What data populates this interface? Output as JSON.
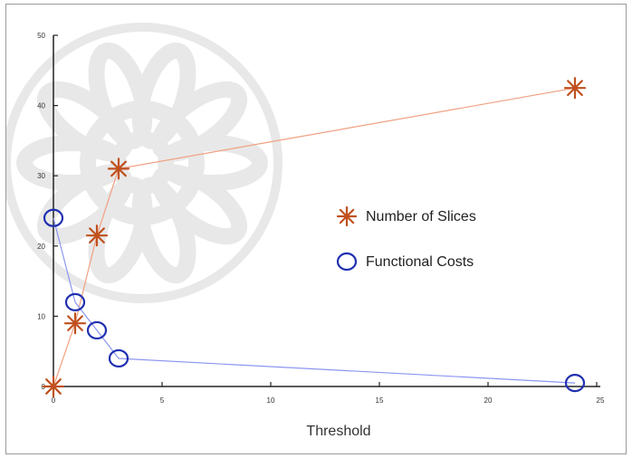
{
  "chart_data": {
    "type": "line",
    "xlabel": "Threshold",
    "ylabel": "",
    "xlim": [
      0,
      25
    ],
    "ylim": [
      0,
      50
    ],
    "xticks": [
      0,
      5,
      10,
      15,
      20,
      25
    ],
    "yticks": [
      0,
      10,
      20,
      30,
      40,
      50
    ],
    "legend_position": "center-right",
    "series": [
      {
        "name": "Number of Slices",
        "marker": "asterisk",
        "line_color": "#f0a080",
        "marker_color": "#c0501e",
        "x": [
          0,
          1,
          2,
          3,
          24
        ],
        "y": [
          0,
          9,
          21.5,
          31,
          42.5
        ]
      },
      {
        "name": "Functional Costs",
        "marker": "circle",
        "line_color": "#8c96f0",
        "marker_color": "#2030b0",
        "x": [
          0,
          1,
          2,
          3,
          24
        ],
        "y": [
          24,
          12,
          8,
          4,
          0.5
        ]
      }
    ]
  }
}
